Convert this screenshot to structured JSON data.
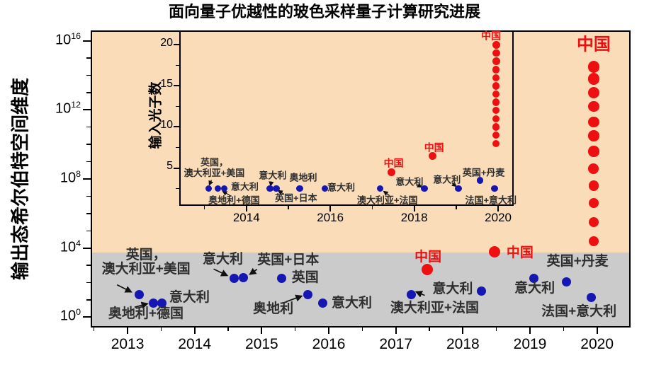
{
  "title": "面向量子优越性的玻色采样量子计算研究进展",
  "colors": {
    "supremacy_zone_orange": "#fadcb8",
    "classical_zone_gray": "#cbcbcb",
    "china_red": "#ee1010",
    "international_blue": "#1616b2",
    "label_dark": "#2e2e2e",
    "axis_black": "#000000"
  },
  "chart_data": [
    {
      "id": "main",
      "type": "scatter",
      "title": "面向量子优越性的玻色采样量子计算研究进展",
      "xlabel": "",
      "ylabel": "输出态希尔伯特空间维度",
      "y_scale": "log10",
      "x_range": [
        2012.45,
        2020.5
      ],
      "y_range_log10": [
        -0.6,
        16.6
      ],
      "x_ticks_major": [
        2013,
        2014,
        2015,
        2016,
        2017,
        2018,
        2019,
        2020
      ],
      "x_ticks_minor": [
        2012.5,
        2013.5,
        2014.5,
        2015.5,
        2016.5,
        2017.5,
        2018.5,
        2019.5
      ],
      "y_ticks_major_exponents": [
        0,
        4,
        8,
        12,
        16
      ],
      "y_ticks_minor_exponents": [
        1,
        2,
        3,
        5,
        6,
        7,
        9,
        10,
        11,
        13,
        14,
        15
      ],
      "threshold_log10": 3.74,
      "zones": {
        "above_threshold": "supremacy_zone_orange",
        "below_threshold": "classical_zone_gray"
      },
      "grid": false,
      "legend": "none",
      "points": [
        {
          "x": 2013.17,
          "y": 1.3,
          "group": "international",
          "label": "英国，\n澳大利亚+美国",
          "label_offset": [
            10,
            -46
          ],
          "arrow": [
            -31,
            -14,
            -11,
            -4
          ]
        },
        {
          "x": 2013.39,
          "y": 0.82,
          "group": "international",
          "label": "奥地利+德国",
          "label_offset": [
            -11,
            16
          ],
          "arrow": [
            -27,
            6,
            -9,
            1
          ]
        },
        {
          "x": 2013.51,
          "y": 0.82,
          "group": "international",
          "label": "意大利",
          "label_offset": [
            39,
            -7
          ]
        },
        {
          "x": 2014.59,
          "y": 2.25,
          "group": "international",
          "label": "意大利",
          "label_offset": [
            -16,
            -26
          ],
          "arrow": [
            -29,
            -13,
            -10,
            -4
          ]
        },
        {
          "x": 2014.73,
          "y": 2.28,
          "group": "international",
          "label": "英国+日本",
          "label_offset": [
            63,
            -25
          ],
          "arrow": [
            19,
            -12,
            9,
            -5
          ]
        },
        {
          "x": 2015.3,
          "y": 2.25,
          "group": "international",
          "label": "英国",
          "label_offset": [
            33,
            0
          ]
        },
        {
          "x": 2015.69,
          "y": 1.3,
          "group": "international",
          "label": "奥地利",
          "label_offset": [
            -49,
            20
          ],
          "arrow": [
            -31,
            10,
            -9,
            2
          ]
        },
        {
          "x": 2015.91,
          "y": 0.82,
          "group": "international",
          "label": "意大利",
          "label_offset": [
            41,
            1
          ]
        },
        {
          "x": 2017.23,
          "y": 1.3,
          "group": "international",
          "label": "澳大利亚+法国",
          "label_offset": [
            33,
            19
          ],
          "arrow": [
            19,
            1,
            7,
            -4
          ]
        },
        {
          "x": 2017.47,
          "y": 2.75,
          "group": "china",
          "label": "中国",
          "label_offset": [
            1,
            -17
          ]
        },
        {
          "x": 2018.28,
          "y": 1.5,
          "group": "international",
          "label": "意大利",
          "label_offset": [
            -41,
            -3
          ]
        },
        {
          "x": 2018.47,
          "y": 3.8,
          "group": "china",
          "label": "中国",
          "label_offset": [
            36,
            2
          ]
        },
        {
          "x": 2019.06,
          "y": 2.25,
          "group": "international",
          "label": "意大利",
          "label_offset": [
            1,
            15
          ]
        },
        {
          "x": 2019.54,
          "y": 2.05,
          "group": "international",
          "label": "英国+丹麦",
          "label_offset": [
            16,
            -28
          ]
        },
        {
          "x": 2019.91,
          "y": 1.15,
          "group": "international",
          "label": "法国+意大利",
          "label_offset": [
            -17,
            21
          ]
        },
        {
          "x": 2019.95,
          "y_values": [
            14.5,
            13.8,
            13.0,
            12.2,
            11.3,
            10.5,
            9.6,
            8.6,
            7.6,
            6.6,
            5.5,
            4.4
          ],
          "group": "china",
          "label": "中国",
          "label_style": "big",
          "label_offset": [
            0,
            -31
          ]
        }
      ]
    },
    {
      "id": "inset",
      "type": "scatter",
      "title": "",
      "xlabel": "",
      "ylabel": "输入光子数",
      "y_scale": "linear",
      "x_range": [
        2012.4,
        2020.37
      ],
      "y_range": [
        0.39,
        21.76
      ],
      "x_ticks_major": [
        2014,
        2016,
        2018,
        2020
      ],
      "x_ticks_minor": [
        2013,
        2015,
        2017,
        2019
      ],
      "y_ticks_major": [
        5,
        10,
        15,
        20
      ],
      "y_ticks_minor": [
        2.5,
        7.5,
        12.5,
        17.5
      ],
      "grid": false,
      "legend": "none",
      "points": [
        {
          "x": 2013.1,
          "y": 2.5,
          "group": "international",
          "label": "英国，\n澳大利亚+美国",
          "label_offset": [
            8,
            -30
          ],
          "arrow": [
            4,
            -12,
            1,
            -5
          ]
        },
        {
          "x": 2013.32,
          "y": 2.5,
          "group": "international",
          "label": "奥地利+德国",
          "label_offset": [
            23,
            16
          ],
          "arrow": [
            19,
            11,
            7,
            4
          ]
        },
        {
          "x": 2013.47,
          "y": 2.5,
          "group": "international",
          "label": "意大利",
          "label_offset": [
            29,
            -3
          ]
        },
        {
          "x": 2014.56,
          "y": 2.5,
          "group": "international",
          "label": "意大利",
          "label_offset": [
            4,
            -19
          ],
          "arrow": [
            2,
            -10,
            1,
            -4
          ]
        },
        {
          "x": 2014.71,
          "y": 2.5,
          "group": "international",
          "label": "英国+日本",
          "label_offset": [
            28,
            13
          ],
          "arrow": [
            11,
            8,
            3,
            3
          ]
        },
        {
          "x": 2015.27,
          "y": 2.5,
          "group": "international",
          "label": "奥地利",
          "label_offset": [
            5,
            -16
          ]
        },
        {
          "x": 2015.87,
          "y": 2.5,
          "group": "international",
          "label": "意大利",
          "label_offset": [
            23,
            -2
          ]
        },
        {
          "x": 2017.19,
          "y": 2.5,
          "group": "international",
          "label": "澳大利亚+法国",
          "label_offset": [
            10,
            16
          ],
          "arrow": [
            13,
            10,
            5,
            4
          ]
        },
        {
          "x": 2017.46,
          "y": 4.5,
          "group": "china",
          "label": "中国",
          "label_offset": [
            3,
            -12
          ]
        },
        {
          "x": 2018.24,
          "y": 2.5,
          "group": "international",
          "label": "意大利",
          "label_offset": [
            -21,
            -10
          ],
          "arrow": [
            -11,
            -6,
            -4,
            -2
          ]
        },
        {
          "x": 2018.44,
          "y": 6.5,
          "group": "china",
          "label": "中国",
          "label_offset": [
            2,
            -11
          ]
        },
        {
          "x": 2019.05,
          "y": 2.5,
          "group": "international",
          "label": "意大利",
          "label_offset": [
            -16,
            -13
          ],
          "arrow": [
            -9,
            -8,
            -3,
            -3
          ]
        },
        {
          "x": 2019.57,
          "y": 3.5,
          "group": "international",
          "label": "英国+丹麦",
          "label_offset": [
            5,
            -11
          ]
        },
        {
          "x": 2019.91,
          "y": 2.5,
          "group": "international",
          "label": "法国+意大利",
          "label_offset": [
            -5,
            16
          ]
        },
        {
          "x": 2019.95,
          "y_values": [
            20,
            19,
            18,
            17,
            16,
            15,
            14,
            13,
            12,
            11,
            10,
            9,
            8
          ],
          "group": "china",
          "label": "中国",
          "label_offset": [
            -7,
            -12
          ]
        }
      ]
    }
  ]
}
